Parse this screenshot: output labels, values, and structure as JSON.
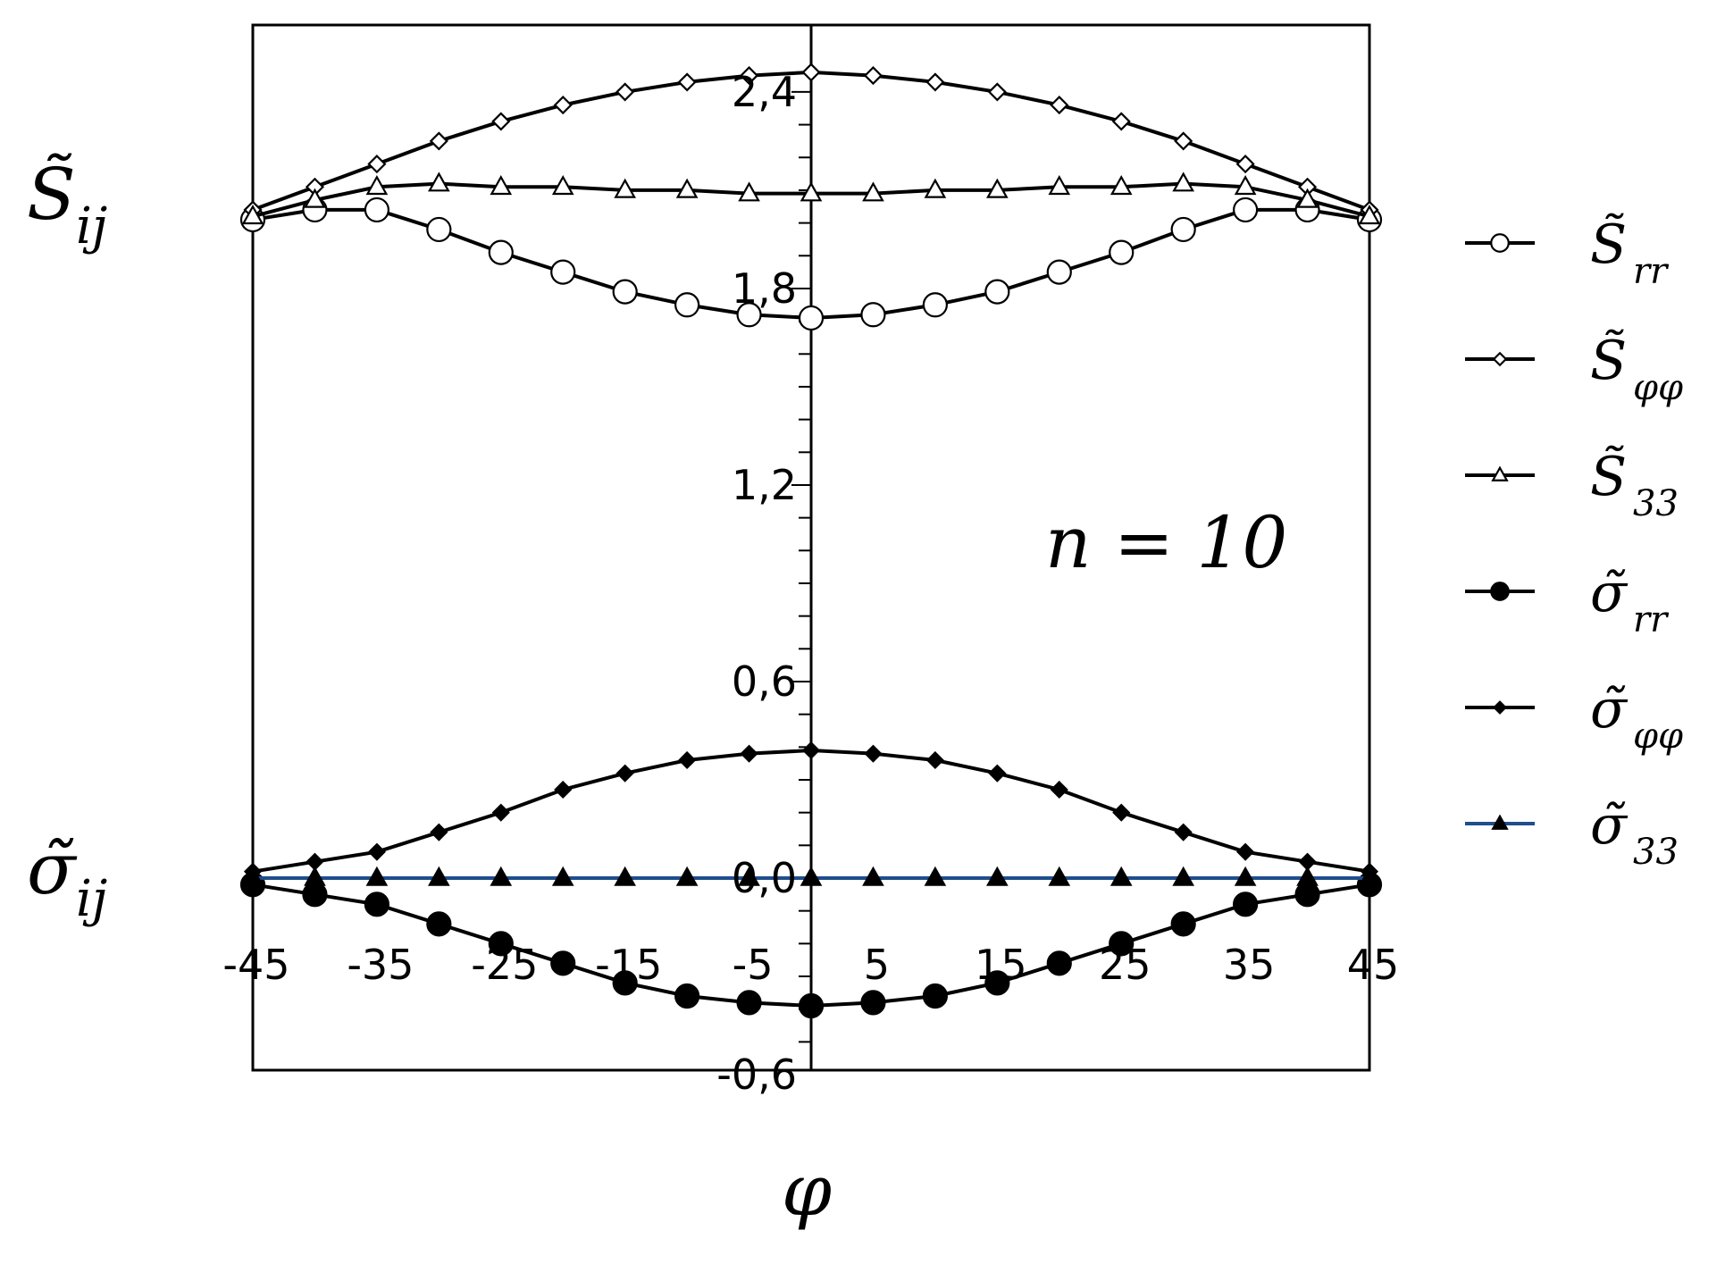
{
  "chart_data": {
    "type": "line",
    "title": "",
    "xlabel": "φ",
    "ylabel_top": "S̃",
    "ylabel_top_sub": "ij",
    "ylabel_bottom": "σ̃",
    "ylabel_bottom_sub": "ij",
    "annotation": "n = 10",
    "xlim": [
      -45,
      45
    ],
    "ylim": [
      -0.6,
      2.5
    ],
    "x_tick_labels": [
      "-45",
      "-35",
      "-25",
      "-15",
      "-5",
      "5",
      "15",
      "25",
      "35",
      "45"
    ],
    "x_tick_values": [
      -45,
      -35,
      -25,
      -15,
      -5,
      5,
      15,
      25,
      35,
      45
    ],
    "y_tick_labels": [
      "-0,6",
      "0,0",
      "0,6",
      "1,2",
      "1,8",
      "2,4"
    ],
    "y_tick_values": [
      -0.6,
      0.0,
      0.6,
      1.2,
      1.8,
      2.4
    ],
    "grid": false,
    "legend_position": "right",
    "x": [
      -45,
      -40,
      -35,
      -30,
      -25,
      -20,
      -15,
      -10,
      -5,
      0,
      5,
      10,
      15,
      20,
      25,
      30,
      35,
      40,
      45
    ],
    "series": [
      {
        "name": "S̃",
        "sub": "rr",
        "marker": "circle-open",
        "color": "#000000",
        "values": [
          2.01,
          2.04,
          2.04,
          1.98,
          1.91,
          1.85,
          1.79,
          1.75,
          1.72,
          1.71,
          1.72,
          1.75,
          1.79,
          1.85,
          1.91,
          1.98,
          2.04,
          2.04,
          2.01
        ]
      },
      {
        "name": "S̃",
        "sub": "φφ",
        "marker": "diamond-open",
        "color": "#000000",
        "values": [
          2.04,
          2.11,
          2.18,
          2.25,
          2.31,
          2.36,
          2.4,
          2.43,
          2.45,
          2.46,
          2.45,
          2.43,
          2.4,
          2.36,
          2.31,
          2.25,
          2.18,
          2.11,
          2.04
        ]
      },
      {
        "name": "S̃",
        "sub": "33",
        "marker": "triangle-open",
        "color": "#000000",
        "values": [
          2.02,
          2.07,
          2.11,
          2.12,
          2.11,
          2.11,
          2.1,
          2.1,
          2.09,
          2.09,
          2.09,
          2.1,
          2.1,
          2.11,
          2.11,
          2.12,
          2.11,
          2.07,
          2.02
        ]
      },
      {
        "name": "σ̃",
        "sub": "rr",
        "marker": "circle-filled",
        "color": "#000000",
        "values": [
          -0.02,
          -0.05,
          -0.08,
          -0.14,
          -0.2,
          -0.26,
          -0.32,
          -0.36,
          -0.38,
          -0.39,
          -0.38,
          -0.36,
          -0.32,
          -0.26,
          -0.2,
          -0.14,
          -0.08,
          -0.05,
          -0.02
        ]
      },
      {
        "name": "σ̃",
        "sub": "φφ",
        "marker": "diamond-filled",
        "color": "#000000",
        "values": [
          0.02,
          0.05,
          0.08,
          0.14,
          0.2,
          0.27,
          0.32,
          0.36,
          0.38,
          0.39,
          0.38,
          0.36,
          0.32,
          0.27,
          0.2,
          0.14,
          0.08,
          0.05,
          0.02
        ]
      },
      {
        "name": "σ̃",
        "sub": "33",
        "marker": "triangle-filled",
        "color": "#1f4e8c",
        "values": [
          0,
          0,
          0,
          0,
          0,
          0,
          0,
          0,
          0,
          0,
          0,
          0,
          0,
          0,
          0,
          0,
          0,
          0,
          0
        ]
      }
    ]
  }
}
